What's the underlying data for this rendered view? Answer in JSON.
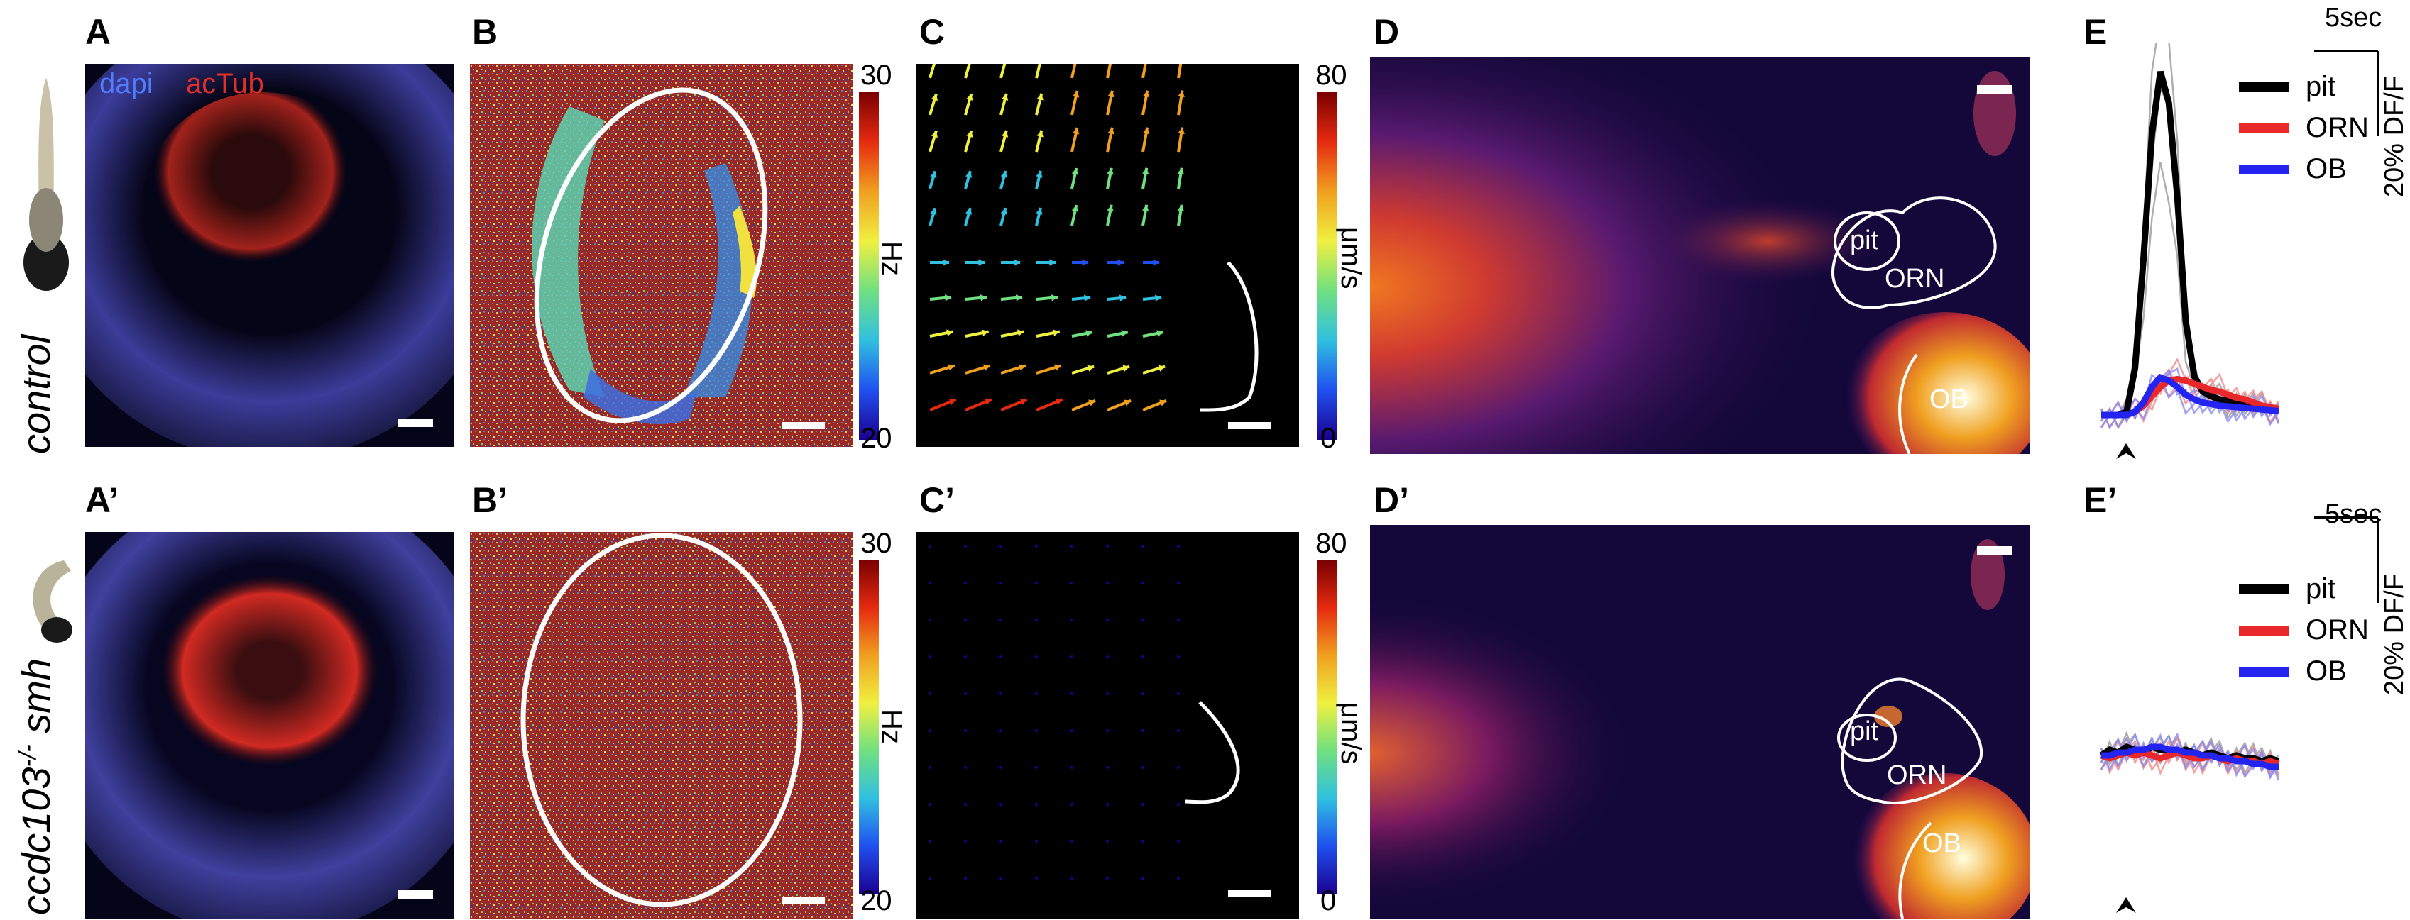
{
  "rows": [
    {
      "label": "control",
      "superscript": ""
    },
    {
      "label": "ccdc103",
      "superscript": "-/-",
      "suffix": " smh"
    }
  ],
  "panels": {
    "A": "A",
    "A2": "A’",
    "B": "B",
    "B2": "B’",
    "C": "C",
    "C2": "C’",
    "D": "D",
    "D2": "D’",
    "E": "E",
    "E2": "E’"
  },
  "stain": {
    "dapi": "dapi",
    "actub": "acTub",
    "dapi_color": "#4f7dff",
    "actub_color": "#e0302a"
  },
  "colorbar_b": {
    "max": "30",
    "min": "20",
    "unit": "Hz"
  },
  "colorbar_c": {
    "max": "80",
    "min": "0",
    "unit": "μm/s"
  },
  "regions": {
    "pit": "pit",
    "orn": "ORN",
    "ob": "OB"
  },
  "traces": {
    "time_scale": "5sec",
    "amp_scale": "20% DF/F",
    "legend": [
      {
        "name": "pit",
        "color": "#000000"
      },
      {
        "name": "ORN",
        "color": "#e8282a"
      },
      {
        "name": "OB",
        "color": "#2424f0"
      }
    ]
  },
  "chart_data": [
    {
      "type": "line",
      "title": "",
      "xlabel": "",
      "ylabel": "",
      "series": [
        {
          "name": "pit",
          "values": [
            0,
            0,
            0,
            0.2,
            3,
            10,
            18,
            22,
            20,
            14,
            6,
            2.5,
            1.5,
            1.2,
            1,
            0.9,
            0.8,
            0.7,
            0.6,
            0.5,
            0.4,
            0.3
          ]
        },
        {
          "name": "ORN",
          "values": [
            0,
            0,
            0,
            0,
            0.2,
            0.6,
            1.2,
            1.8,
            2.2,
            2.3,
            2.2,
            2.0,
            1.8,
            1.6,
            1.5,
            1.3,
            1.1,
            1.0,
            0.8,
            0.6,
            0.5,
            0.4
          ]
        },
        {
          "name": "OB",
          "values": [
            0,
            0,
            0,
            0,
            0.2,
            0.8,
            1.8,
            2.4,
            2.2,
            1.8,
            1.3,
            1.0,
            0.8,
            0.7,
            0.6,
            0.55,
            0.5,
            0.45,
            0.4,
            0.35,
            0.3,
            0.25
          ]
        }
      ]
    },
    {
      "type": "line",
      "title": "",
      "xlabel": "",
      "ylabel": "",
      "series": [
        {
          "name": "pit",
          "values": [
            0,
            0.2,
            0.1,
            0.3,
            0.2,
            0.1,
            0.3,
            0.2,
            0.2,
            0.1,
            0.2,
            0.1,
            0,
            0.1,
            0,
            -0.1,
            0,
            -0.1,
            -0.1,
            -0.2,
            -0.1,
            -0.2
          ]
        },
        {
          "name": "ORN",
          "values": [
            0,
            -0.1,
            0,
            0.1,
            0,
            0.1,
            0,
            -0.1,
            0,
            0.1,
            0,
            -0.1,
            -0.1,
            0,
            -0.1,
            -0.2,
            -0.1,
            -0.2,
            -0.2,
            -0.3,
            -0.2,
            -0.3
          ]
        },
        {
          "name": "OB",
          "values": [
            0,
            0,
            0.1,
            0.1,
            0.2,
            0.2,
            0.3,
            0.3,
            0.2,
            0.2,
            0.1,
            0.1,
            0,
            0,
            -0.1,
            -0.1,
            -0.2,
            -0.2,
            -0.3,
            -0.3,
            -0.4,
            -0.4
          ]
        }
      ]
    }
  ]
}
